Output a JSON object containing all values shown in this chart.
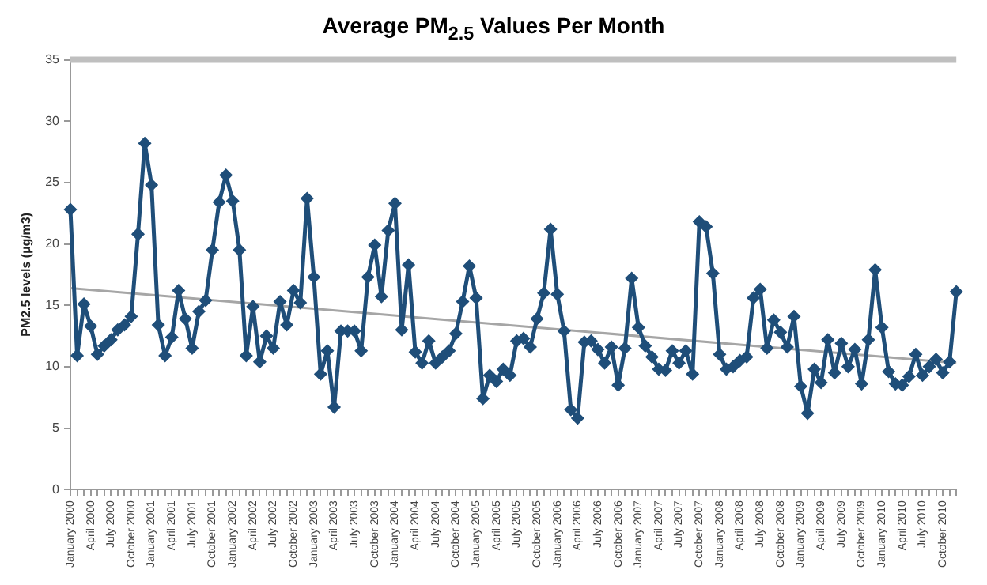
{
  "chart_data": {
    "type": "line",
    "title": "Average PM$_{2.5}$ Values Per Month",
    "ylabel": "PM2.5 levels (µg/m3)",
    "categories": [
      "January 2000",
      null,
      null,
      "April 2000",
      null,
      null,
      "July 2000",
      null,
      null,
      "October 2000",
      null,
      null,
      "January 2001",
      null,
      null,
      "April 2001",
      null,
      null,
      "July 2001",
      null,
      null,
      "October 2001",
      null,
      null,
      "January 2002",
      null,
      null,
      "April 2002",
      null,
      null,
      "July 2002",
      null,
      null,
      "October 2002",
      null,
      null,
      "January 2003",
      null,
      null,
      "April 2003",
      null,
      null,
      "July 2003",
      null,
      null,
      "October 2003",
      null,
      null,
      "January 2004",
      null,
      null,
      "April 2004",
      null,
      null,
      "July 2004",
      null,
      null,
      "October 2004",
      null,
      null,
      "January 2005",
      null,
      null,
      "April 2005",
      null,
      null,
      "July 2005",
      null,
      null,
      "October 2005",
      null,
      null,
      "January 2006",
      null,
      null,
      "April 2006",
      null,
      null,
      "July 2006",
      null,
      null,
      "October 2006",
      null,
      null,
      "January 2007",
      null,
      null,
      "April 2007",
      null,
      null,
      "July 2007",
      null,
      null,
      "October 2007",
      null,
      null,
      "January 2008",
      null,
      null,
      "April 2008",
      null,
      null,
      "July 2008",
      null,
      null,
      "October 2008",
      null,
      null,
      "January 2009",
      null,
      null,
      "April 2009",
      null,
      null,
      "July 2009",
      null,
      null,
      "October 2009",
      null,
      null,
      "January 2010",
      null,
      null,
      "April 2010",
      null,
      null,
      "July 2010",
      null,
      null,
      "October 2010",
      null,
      null
    ],
    "series": [
      {
        "type": "line",
        "color": "#1f4e79",
        "marker": "diamond",
        "values": [
          22.8,
          10.9,
          15.1,
          13.3,
          11.0,
          11.7,
          12.2,
          13.0,
          13.4,
          14.1,
          20.8,
          28.2,
          24.8,
          13.4,
          10.9,
          12.4,
          16.2,
          13.9,
          11.5,
          14.5,
          15.4,
          19.5,
          23.4,
          25.6,
          23.5,
          19.5,
          10.9,
          14.9,
          10.4,
          12.5,
          11.5,
          15.3,
          13.4,
          16.2,
          15.2,
          23.7,
          17.3,
          9.4,
          11.3,
          6.7,
          12.9,
          12.9,
          12.9,
          11.3,
          17.3,
          19.9,
          15.7,
          21.1,
          23.3,
          13.0,
          18.3,
          11.2,
          10.3,
          12.1,
          10.3,
          10.8,
          11.3,
          12.7,
          15.3,
          18.2,
          15.6,
          7.4,
          9.3,
          8.8,
          9.8,
          9.3,
          12.1,
          12.3,
          11.6,
          13.9,
          16.0,
          21.2,
          15.9,
          12.9,
          6.5,
          5.8,
          12.0,
          12.1,
          11.4,
          10.3,
          11.6,
          8.5,
          11.5,
          17.2,
          13.2,
          11.7,
          10.8,
          9.8,
          9.7,
          11.3,
          10.3,
          11.3,
          9.4,
          21.8,
          21.4,
          17.6,
          11.0,
          9.8,
          10.0,
          10.5,
          10.8,
          15.6,
          16.3,
          11.5,
          13.8,
          12.8,
          11.6,
          14.1,
          8.4,
          6.2,
          9.8,
          8.7,
          12.2,
          9.5,
          11.9,
          10.0,
          11.4,
          8.6,
          12.2,
          17.9,
          13.2,
          9.6,
          8.6,
          8.5,
          9.2,
          11.0,
          9.3,
          10.0,
          10.6,
          9.5,
          10.4,
          16.1
        ]
      },
      {
        "type": "line",
        "color": "#a6a6a6",
        "marker": "none",
        "values": [
          16.4,
          null,
          null,
          null,
          null,
          null,
          null,
          null,
          null,
          null,
          null,
          null,
          null,
          null,
          null,
          null,
          null,
          null,
          null,
          null,
          null,
          null,
          null,
          null,
          null,
          null,
          null,
          null,
          null,
          null,
          null,
          null,
          null,
          null,
          null,
          null,
          null,
          null,
          null,
          null,
          null,
          null,
          null,
          null,
          null,
          null,
          null,
          null,
          null,
          null,
          null,
          null,
          null,
          null,
          null,
          null,
          null,
          null,
          null,
          null,
          null,
          null,
          null,
          null,
          null,
          null,
          null,
          null,
          null,
          null,
          null,
          null,
          null,
          null,
          null,
          null,
          null,
          null,
          null,
          null,
          null,
          null,
          null,
          null,
          null,
          null,
          null,
          null,
          null,
          null,
          null,
          null,
          null,
          null,
          null,
          null,
          null,
          null,
          null,
          null,
          null,
          null,
          null,
          null,
          null,
          null,
          null,
          null,
          null,
          null,
          null,
          null,
          null,
          null,
          null,
          null,
          null,
          null,
          null,
          null,
          null,
          null,
          null,
          null,
          null,
          null,
          null,
          null,
          null,
          null,
          null,
          10.3
        ]
      }
    ],
    "ylim": [
      0,
      35
    ],
    "yticks": [
      0,
      5,
      10,
      15,
      20,
      25,
      30,
      35
    ],
    "grid": false,
    "legend": false,
    "ref_lines": [
      {
        "axis": "y",
        "value": 35,
        "color": "#bfbfbf"
      }
    ]
  }
}
